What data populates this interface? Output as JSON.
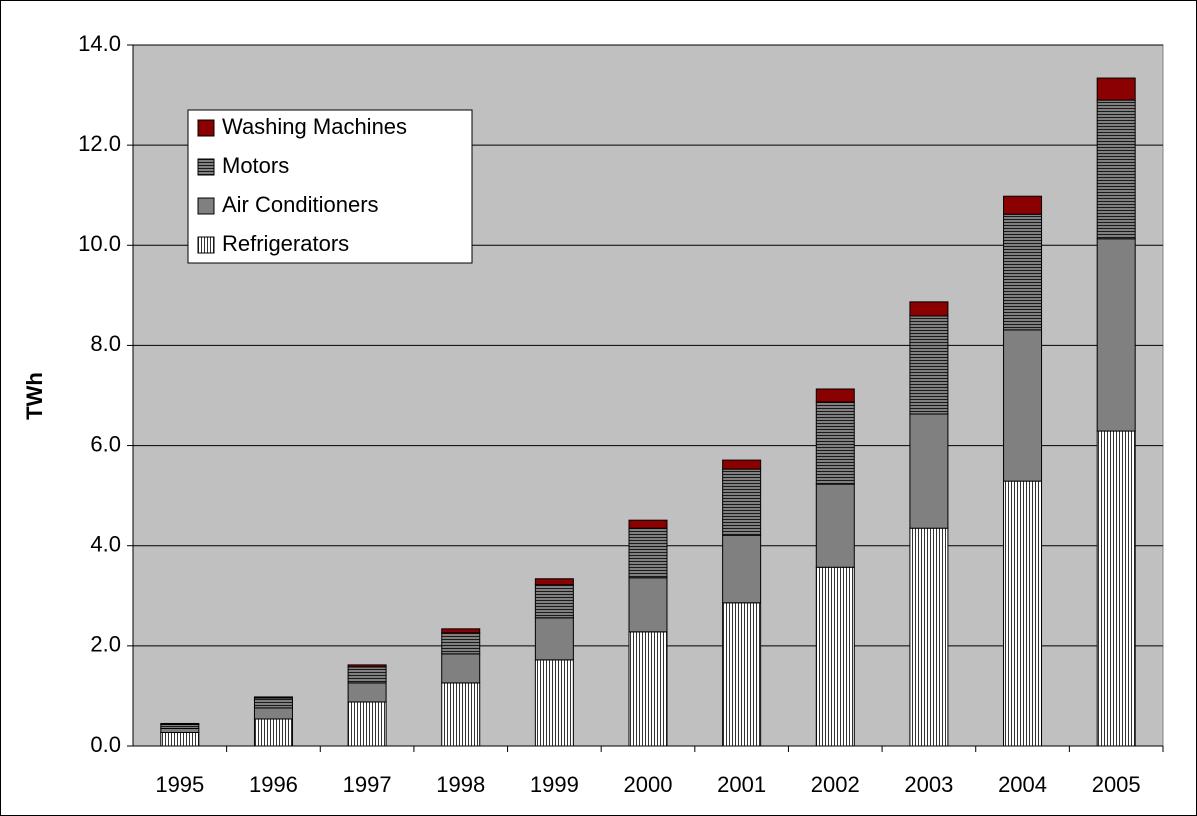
{
  "chart_data": {
    "type": "stacked-bar",
    "y_label": "TWh",
    "categories": [
      "1995",
      "1996",
      "1997",
      "1998",
      "1999",
      "2000",
      "2001",
      "2002",
      "2003",
      "2004",
      "2005"
    ],
    "series": [
      {
        "name": "Refrigerators",
        "color": "#ffffff",
        "hatch": "vertical",
        "values": [
          0.27,
          0.54,
          0.88,
          1.26,
          1.72,
          2.28,
          2.86,
          3.57,
          4.35,
          5.29,
          6.29
        ]
      },
      {
        "name": "Air Conditioners",
        "color": "#808080",
        "values": [
          0.08,
          0.22,
          0.38,
          0.58,
          0.84,
          1.08,
          1.35,
          1.66,
          2.28,
          3.02,
          3.84
        ]
      },
      {
        "name": "Motors",
        "color": "#808080",
        "hatch": "horizontal",
        "values": [
          0.08,
          0.2,
          0.32,
          0.42,
          0.66,
          0.99,
          1.32,
          1.64,
          1.96,
          2.31,
          2.77
        ]
      },
      {
        "name": "Washing Machines",
        "color": "#8b0000",
        "values": [
          0.02,
          0.02,
          0.04,
          0.08,
          0.12,
          0.16,
          0.18,
          0.26,
          0.28,
          0.36,
          0.44
        ]
      }
    ],
    "ylim": [
      0,
      14
    ],
    "yticks": [
      {
        "value": 0,
        "label": "0.0"
      },
      {
        "value": 2,
        "label": "2.0"
      },
      {
        "value": 4,
        "label": "4.0"
      },
      {
        "value": 6,
        "label": "6.0"
      },
      {
        "value": 8,
        "label": "8.0"
      },
      {
        "value": 10,
        "label": "10.0"
      },
      {
        "value": 12,
        "label": "12.0"
      },
      {
        "value": 14,
        "label": "14.0"
      }
    ],
    "grid": true,
    "legend": "upper-left"
  }
}
